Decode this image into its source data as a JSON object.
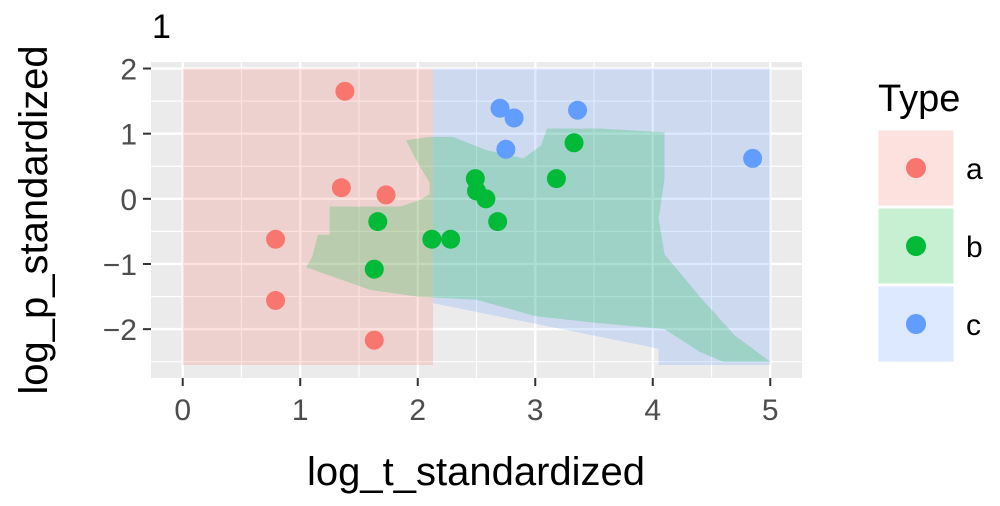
{
  "chart_data": {
    "type": "scatter",
    "panel_label": "1",
    "xlabel": "log_t_standardized",
    "ylabel": "log_p_standardized",
    "xlim": [
      -0.27,
      5.27
    ],
    "ylim": [
      -2.75,
      2.1
    ],
    "x_ticks": [
      0,
      1,
      2,
      3,
      4,
      5
    ],
    "y_ticks": [
      2,
      1,
      0,
      -1,
      -2
    ],
    "x_tick_labels": [
      "0",
      "1",
      "2",
      "3",
      "4",
      "5"
    ],
    "y_tick_labels": [
      "2",
      "1",
      "0",
      "−1",
      "−2"
    ],
    "grid": true,
    "legend": {
      "title": "Type",
      "position": "right",
      "entries": [
        "a",
        "b",
        "c"
      ]
    },
    "colors": {
      "a": "#F8766D",
      "b": "#00BA38",
      "c": "#619CFF",
      "panel_bg": "#EBEBEB",
      "grid": "#FFFFFF"
    },
    "regions": [
      {
        "type": "a",
        "polygon": [
          [
            0,
            -2.55
          ],
          [
            0,
            2.0
          ],
          [
            2.13,
            2.0
          ],
          [
            2.13,
            -2.55
          ]
        ]
      },
      {
        "type": "c",
        "polygon": [
          [
            2.13,
            2.0
          ],
          [
            5.0,
            2.0
          ],
          [
            5.0,
            -2.55
          ],
          [
            4.05,
            -2.55
          ],
          [
            4.05,
            -2.3
          ],
          [
            2.13,
            -1.6
          ]
        ]
      },
      {
        "type": "b",
        "polygon": [
          [
            1.25,
            -0.55
          ],
          [
            1.25,
            -0.12
          ],
          [
            1.85,
            -0.12
          ],
          [
            2.0,
            -0.03
          ],
          [
            2.1,
            0.07
          ],
          [
            2.1,
            0.25
          ],
          [
            2.0,
            0.55
          ],
          [
            1.9,
            0.9
          ],
          [
            2.1,
            0.95
          ],
          [
            2.3,
            0.95
          ],
          [
            2.58,
            0.75
          ],
          [
            2.9,
            0.62
          ],
          [
            3.05,
            0.82
          ],
          [
            3.1,
            1.08
          ],
          [
            3.55,
            1.08
          ],
          [
            4.1,
            1.02
          ],
          [
            4.1,
            0.3
          ],
          [
            4.05,
            -0.3
          ],
          [
            4.1,
            -0.85
          ],
          [
            4.4,
            -1.5
          ],
          [
            4.7,
            -2.1
          ],
          [
            5.0,
            -2.5
          ],
          [
            4.6,
            -2.5
          ],
          [
            4.4,
            -2.35
          ],
          [
            4.1,
            -2.0
          ],
          [
            3.5,
            -1.9
          ],
          [
            3.0,
            -1.8
          ],
          [
            2.5,
            -1.55
          ],
          [
            2.0,
            -1.5
          ],
          [
            1.6,
            -1.4
          ],
          [
            1.05,
            -1.05
          ],
          [
            1.1,
            -0.9
          ],
          [
            1.15,
            -0.55
          ]
        ]
      }
    ],
    "series": [
      {
        "name": "a",
        "points": [
          [
            1.38,
            1.65
          ],
          [
            1.35,
            0.17
          ],
          [
            1.73,
            0.06
          ],
          [
            0.79,
            -0.62
          ],
          [
            0.79,
            -1.56
          ],
          [
            1.63,
            -2.17
          ]
        ]
      },
      {
        "name": "b",
        "points": [
          [
            1.66,
            -0.35
          ],
          [
            1.63,
            -1.08
          ],
          [
            2.12,
            -0.62
          ],
          [
            2.28,
            -0.62
          ],
          [
            2.49,
            0.31
          ],
          [
            2.5,
            0.12
          ],
          [
            2.58,
            0.0
          ],
          [
            2.68,
            -0.35
          ],
          [
            3.18,
            0.31
          ],
          [
            3.33,
            0.86
          ]
        ]
      },
      {
        "name": "c",
        "points": [
          [
            2.7,
            1.39
          ],
          [
            2.82,
            1.24
          ],
          [
            2.75,
            0.76
          ],
          [
            3.36,
            1.36
          ],
          [
            4.85,
            0.62
          ]
        ]
      }
    ]
  }
}
